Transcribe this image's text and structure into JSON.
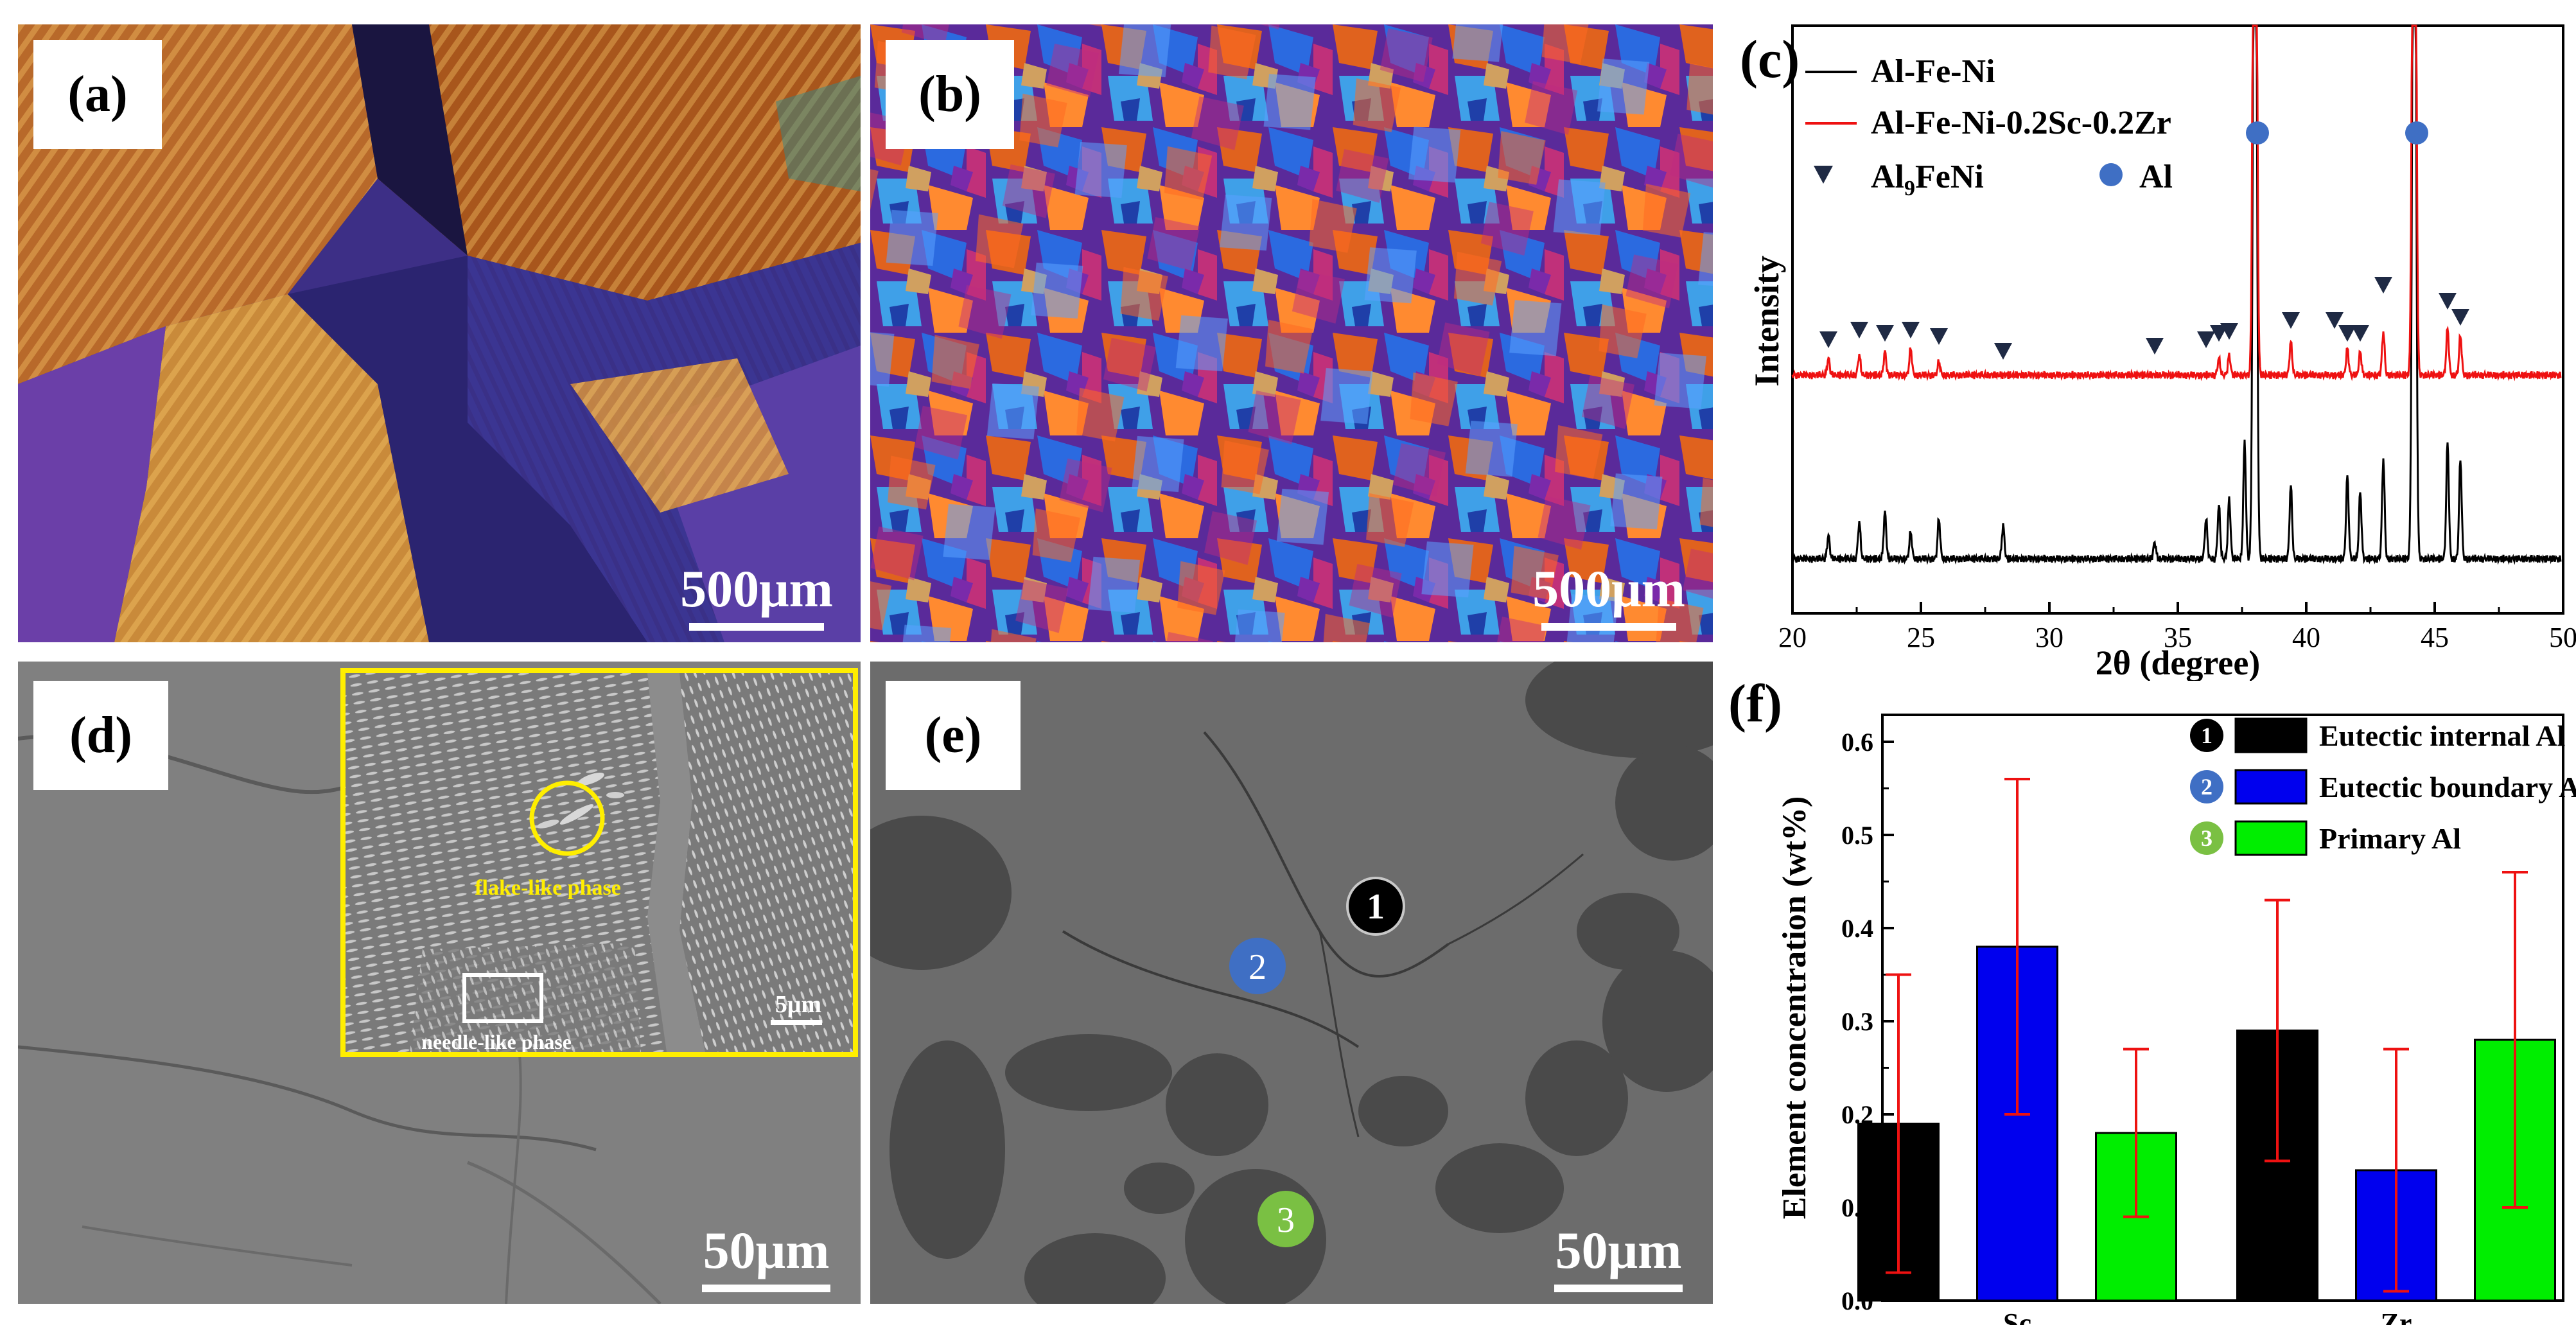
{
  "panels": {
    "a": {
      "label": "(a)",
      "scale": "500μm"
    },
    "b": {
      "label": "(b)",
      "scale": "500μm"
    },
    "d": {
      "label": "(d)",
      "scale": "50μm",
      "inset": {
        "label_flake": "flake-like phase",
        "label_needle": "needle-like phase",
        "scale": "5μm"
      }
    },
    "e": {
      "label": "(e)",
      "scale": "50μm",
      "markers": [
        "1",
        "2",
        "3"
      ]
    },
    "c": {
      "label": "(c)"
    },
    "f": {
      "label": "(f)"
    }
  },
  "colors": {
    "black_series": "#000000",
    "red_series": "#ee1111",
    "blue_bar": "#0000ee",
    "green_bar": "#00ee00",
    "marker_triangle": "#1f2a44",
    "marker_circle": "#3f6fc4",
    "inset_border": "#ffee00"
  },
  "chart_data": [
    {
      "panel": "c",
      "type": "line",
      "title": "",
      "xlabel": "2θ (degree)",
      "ylabel": "Intensity",
      "xlim": [
        20,
        50
      ],
      "xticks": [
        20,
        25,
        30,
        35,
        40,
        45,
        50
      ],
      "legend": [
        {
          "name": "Al-Fe-Ni",
          "color": "#000000"
        },
        {
          "name": "Al-Fe-Ni-0.2Sc-0.2Zr",
          "color": "#ee1111"
        }
      ],
      "phase_legend": [
        {
          "symbol": "triangle-down",
          "label_main": "Al",
          "label_sub": "9",
          "label_rest": "FeNi"
        },
        {
          "symbol": "circle",
          "label_main": "Al",
          "label_sub": "",
          "label_rest": ""
        }
      ],
      "peaks_Al": [
        38.0,
        44.2
      ],
      "peaks_Al9FeNi": [
        21.4,
        22.6,
        23.6,
        24.6,
        25.7,
        28.2,
        34.1,
        36.1,
        36.6,
        37.0,
        39.4,
        41.1,
        41.6,
        42.1,
        43.0,
        45.5,
        46.0
      ],
      "series": [
        {
          "name": "Al-Fe-Ni",
          "baseline": 0.0,
          "peaks": [
            [
              21.4,
              0.07
            ],
            [
              22.6,
              0.11
            ],
            [
              23.6,
              0.14
            ],
            [
              24.6,
              0.08
            ],
            [
              25.7,
              0.12
            ],
            [
              28.2,
              0.1
            ],
            [
              34.1,
              0.05
            ],
            [
              36.1,
              0.12
            ],
            [
              36.6,
              0.16
            ],
            [
              37.0,
              0.18
            ],
            [
              37.6,
              0.35
            ],
            [
              38.0,
              3.0
            ],
            [
              39.4,
              0.22
            ],
            [
              41.6,
              0.25
            ],
            [
              42.1,
              0.2
            ],
            [
              43.0,
              0.3
            ],
            [
              44.2,
              3.0
            ],
            [
              45.5,
              0.35
            ],
            [
              46.0,
              0.3
            ]
          ]
        },
        {
          "name": "Al-Fe-Ni-0.2Sc-0.2Zr",
          "baseline": 0.55,
          "peaks": [
            [
              21.4,
              0.05
            ],
            [
              22.6,
              0.06
            ],
            [
              23.6,
              0.07
            ],
            [
              24.6,
              0.08
            ],
            [
              25.7,
              0.04
            ],
            [
              36.6,
              0.05
            ],
            [
              37.0,
              0.06
            ],
            [
              38.0,
              3.0
            ],
            [
              39.4,
              0.1
            ],
            [
              41.6,
              0.08
            ],
            [
              42.1,
              0.07
            ],
            [
              43.0,
              0.13
            ],
            [
              44.2,
              3.0
            ],
            [
              45.5,
              0.14
            ],
            [
              46.0,
              0.12
            ]
          ]
        }
      ]
    },
    {
      "panel": "f",
      "type": "bar",
      "title": "",
      "xlabel": "",
      "ylabel": "Element concentration (wt%)",
      "ylim": [
        0.0,
        0.6
      ],
      "yticks": [
        "0.0",
        "0.1",
        "0.2",
        "0.3",
        "0.4",
        "0.5",
        "0.6"
      ],
      "categories": [
        "Sc",
        "Zr"
      ],
      "series": [
        {
          "name": "Eutectic internal Al",
          "marker": "1",
          "color": "#000000",
          "values": [
            0.19,
            0.29
          ],
          "err_low": [
            0.03,
            0.15
          ],
          "err_high": [
            0.35,
            0.43
          ]
        },
        {
          "name": "Eutectic boundary Al",
          "marker": "2",
          "color": "#0000ee",
          "values": [
            0.38,
            0.14
          ],
          "err_low": [
            0.2,
            0.01
          ],
          "err_high": [
            0.56,
            0.27
          ]
        },
        {
          "name": "Primary Al",
          "marker": "3",
          "color": "#00ee00",
          "values": [
            0.18,
            0.28
          ],
          "err_low": [
            0.09,
            0.1
          ],
          "err_high": [
            0.27,
            0.46
          ]
        }
      ]
    }
  ]
}
